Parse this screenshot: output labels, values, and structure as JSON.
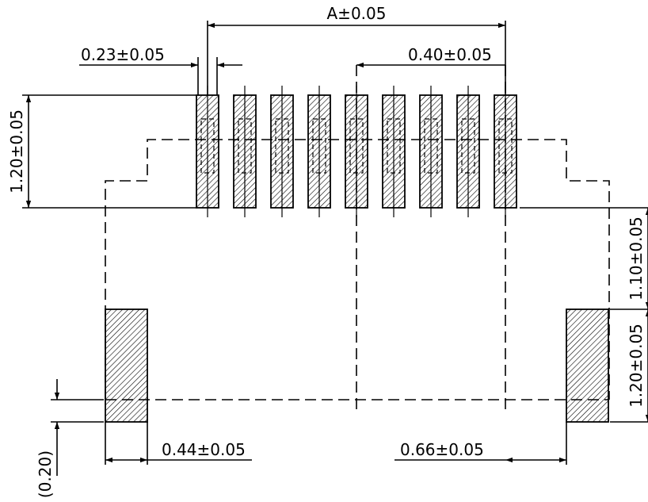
{
  "dimensions": {
    "overall_width": "A±0.05",
    "pad_width": "0.23±0.05",
    "pitch": "0.40±0.05",
    "pad_length": "1.20±0.05",
    "anchor_gap": "1.10±0.05",
    "anchor_length": "1.20±0.05",
    "anchor_offset": "(0.20)",
    "left_anchor_width": "0.44±0.05",
    "right_anchor_width": "0.66±0.05"
  },
  "signal_pad_count": 9
}
